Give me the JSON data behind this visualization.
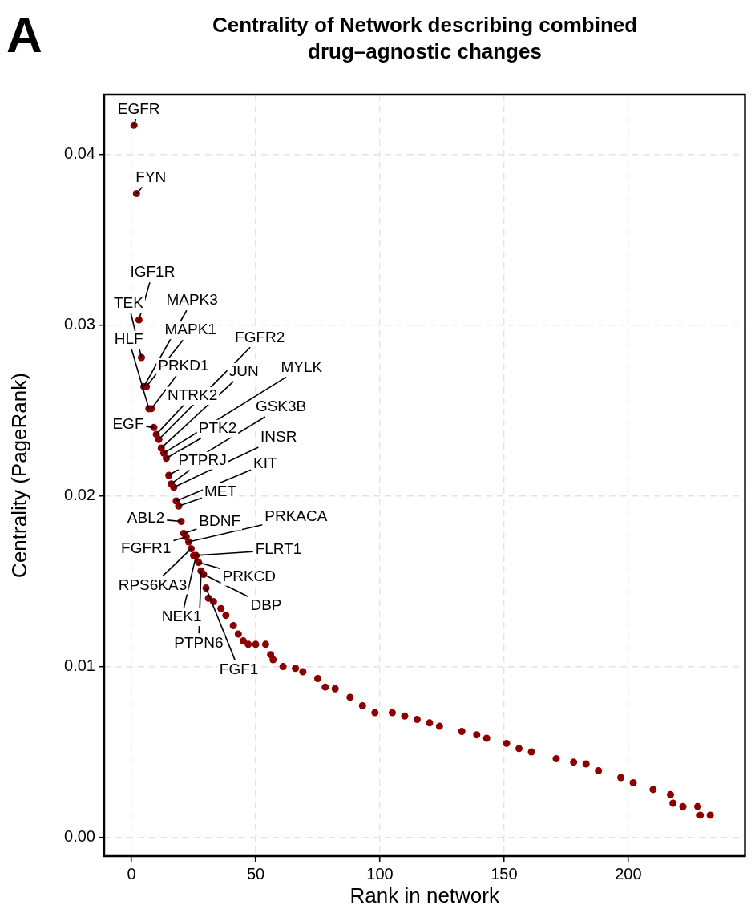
{
  "chart_data": {
    "type": "scatter",
    "title": "Centrality of Network describing combined drug–agnostic changes",
    "xlabel": "Rank in network",
    "ylabel": "Centrality (PageRank)",
    "xlim": [
      -11,
      247
    ],
    "ylim": [
      -0.0011,
      0.0435
    ],
    "xticks": [
      0,
      50,
      100,
      150,
      200
    ],
    "yticks": [
      {
        "value": 0,
        "label": "0.00"
      },
      {
        "value": 0.01,
        "label": "0.01"
      },
      {
        "value": 0.02,
        "label": "0.02"
      },
      {
        "value": 0.03,
        "label": "0.03"
      },
      {
        "value": 0.04,
        "label": "0.04"
      }
    ],
    "grid": true,
    "legend": false,
    "marker": "circle",
    "series": [
      {
        "color": "#8b0000",
        "x": [
          1,
          2,
          3,
          4,
          5,
          6,
          7,
          8,
          9,
          10,
          11,
          12,
          13,
          14,
          15,
          16,
          17,
          18,
          19,
          20,
          21,
          22,
          23,
          24,
          25,
          26,
          27,
          28,
          29,
          30,
          31,
          33,
          36,
          38,
          41,
          43,
          45,
          47,
          50,
          54,
          56,
          57,
          61,
          66,
          69,
          75,
          78,
          82,
          88,
          93,
          98,
          105,
          110,
          115,
          120,
          124,
          133,
          139,
          143,
          151,
          156,
          161,
          171,
          178,
          183,
          188,
          197,
          202,
          210,
          217,
          218,
          222,
          228,
          229,
          233
        ],
        "values": [
          0.0417,
          0.0377,
          0.0303,
          0.0281,
          0.0264,
          0.0264,
          0.0251,
          0.0251,
          0.024,
          0.0236,
          0.0233,
          0.0228,
          0.0225,
          0.0222,
          0.0212,
          0.0207,
          0.0205,
          0.0197,
          0.0194,
          0.0185,
          0.0178,
          0.0176,
          0.0173,
          0.0169,
          0.0165,
          0.0165,
          0.0161,
          0.0156,
          0.0154,
          0.0146,
          0.014,
          0.0138,
          0.0134,
          0.013,
          0.0124,
          0.0119,
          0.0115,
          0.0113,
          0.0113,
          0.0113,
          0.0107,
          0.0104,
          0.01,
          0.0099,
          0.0097,
          0.0093,
          0.0088,
          0.0087,
          0.0082,
          0.0077,
          0.0073,
          0.0073,
          0.0071,
          0.0069,
          0.0067,
          0.0065,
          0.0062,
          0.006,
          0.0058,
          0.0055,
          0.0052,
          0.005,
          0.0046,
          0.0044,
          0.0043,
          0.0039,
          0.0035,
          0.0032,
          0.0028,
          0.0025,
          0.002,
          0.0018,
          0.0018,
          0.0013,
          0.0013
        ]
      }
    ],
    "annotations": [
      "A",
      {
        "text": "EGFR",
        "x": 1,
        "y": 0.0417
      },
      {
        "text": "FYN",
        "x": 2,
        "y": 0.0377
      },
      {
        "text": "IGF1R",
        "x": 3,
        "y": 0.0303
      },
      {
        "text": "TEK",
        "x": 4,
        "y": 0.0281
      },
      {
        "text": "MAPK3",
        "x": 5,
        "y": 0.0264
      },
      {
        "text": "MAPK1",
        "x": 6,
        "y": 0.0264
      },
      {
        "text": "HLF",
        "x": 7,
        "y": 0.0251
      },
      {
        "text": "PRKD1",
        "x": 8,
        "y": 0.0251
      },
      {
        "text": "EGF",
        "x": 9,
        "y": 0.024
      },
      {
        "text": "NTRK2",
        "x": 10,
        "y": 0.0236
      },
      {
        "text": "FGFR2",
        "x": 11,
        "y": 0.0233
      },
      {
        "text": "JUN",
        "x": 12,
        "y": 0.0228
      },
      {
        "text": "MYLK",
        "x": 13,
        "y": 0.0225
      },
      {
        "text": "PTK2",
        "x": 14,
        "y": 0.0222
      },
      {
        "text": "GSK3B",
        "x": 15,
        "y": 0.0212
      },
      {
        "text": "PTPRJ",
        "x": 16,
        "y": 0.0207
      },
      {
        "text": "INSR",
        "x": 17,
        "y": 0.0205
      },
      {
        "text": "KIT",
        "x": 18,
        "y": 0.0197
      },
      {
        "text": "MET",
        "x": 19,
        "y": 0.0194
      },
      {
        "text": "ABL2",
        "x": 20,
        "y": 0.0185
      },
      {
        "text": "BDNF",
        "x": 21,
        "y": 0.0178
      },
      {
        "text": "FGFR1",
        "x": 22,
        "y": 0.0176
      },
      {
        "text": "PRKACA",
        "x": 23,
        "y": 0.0173
      },
      {
        "text": "RPS6KA3",
        "x": 24,
        "y": 0.0169
      },
      {
        "text": "FLRT1",
        "x": 25,
        "y": 0.0165
      },
      {
        "text": "NEK1",
        "x": 26,
        "y": 0.0165
      },
      {
        "text": "PRKCD",
        "x": 27,
        "y": 0.0161
      },
      {
        "text": "PTPN6",
        "x": 28,
        "y": 0.0156
      },
      {
        "text": "DBP",
        "x": 29,
        "y": 0.0154
      },
      {
        "text": "FGF1",
        "x": 30,
        "y": 0.0146
      }
    ]
  }
}
